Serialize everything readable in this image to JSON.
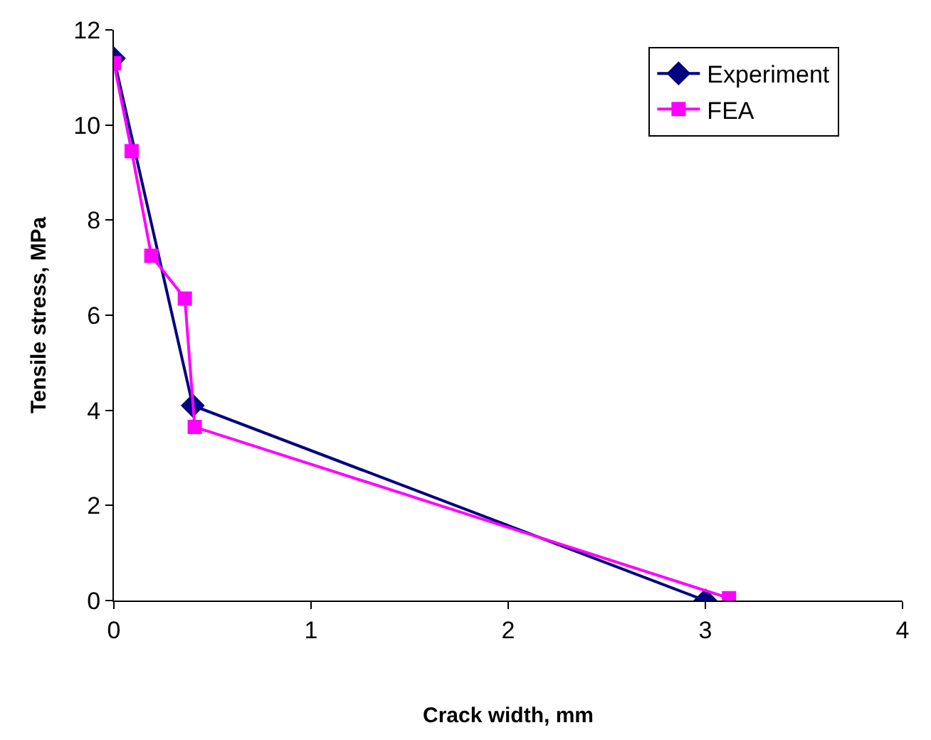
{
  "chart_data": {
    "type": "line",
    "xlabel": "Crack width, mm",
    "ylabel": "Tensile stress, MPa",
    "xlim": [
      0,
      4
    ],
    "xticks": [
      0,
      1,
      2,
      3,
      4
    ],
    "ylim": [
      0,
      12
    ],
    "yticks": [
      0,
      2,
      4,
      6,
      8,
      10,
      12
    ],
    "legend": "top right",
    "series": [
      {
        "name": "Experiment",
        "color": "#000080",
        "marker": "diamond",
        "x": [
          0,
          0.4,
          3.0
        ],
        "values": [
          11.4,
          4.1,
          0
        ]
      },
      {
        "name": "FEA",
        "color": "#ff00ff",
        "marker": "square",
        "x": [
          0,
          0.09,
          0.19,
          0.36,
          0.41,
          3.12
        ],
        "values": [
          11.3,
          9.45,
          7.25,
          6.35,
          3.65,
          0.05
        ]
      }
    ]
  }
}
